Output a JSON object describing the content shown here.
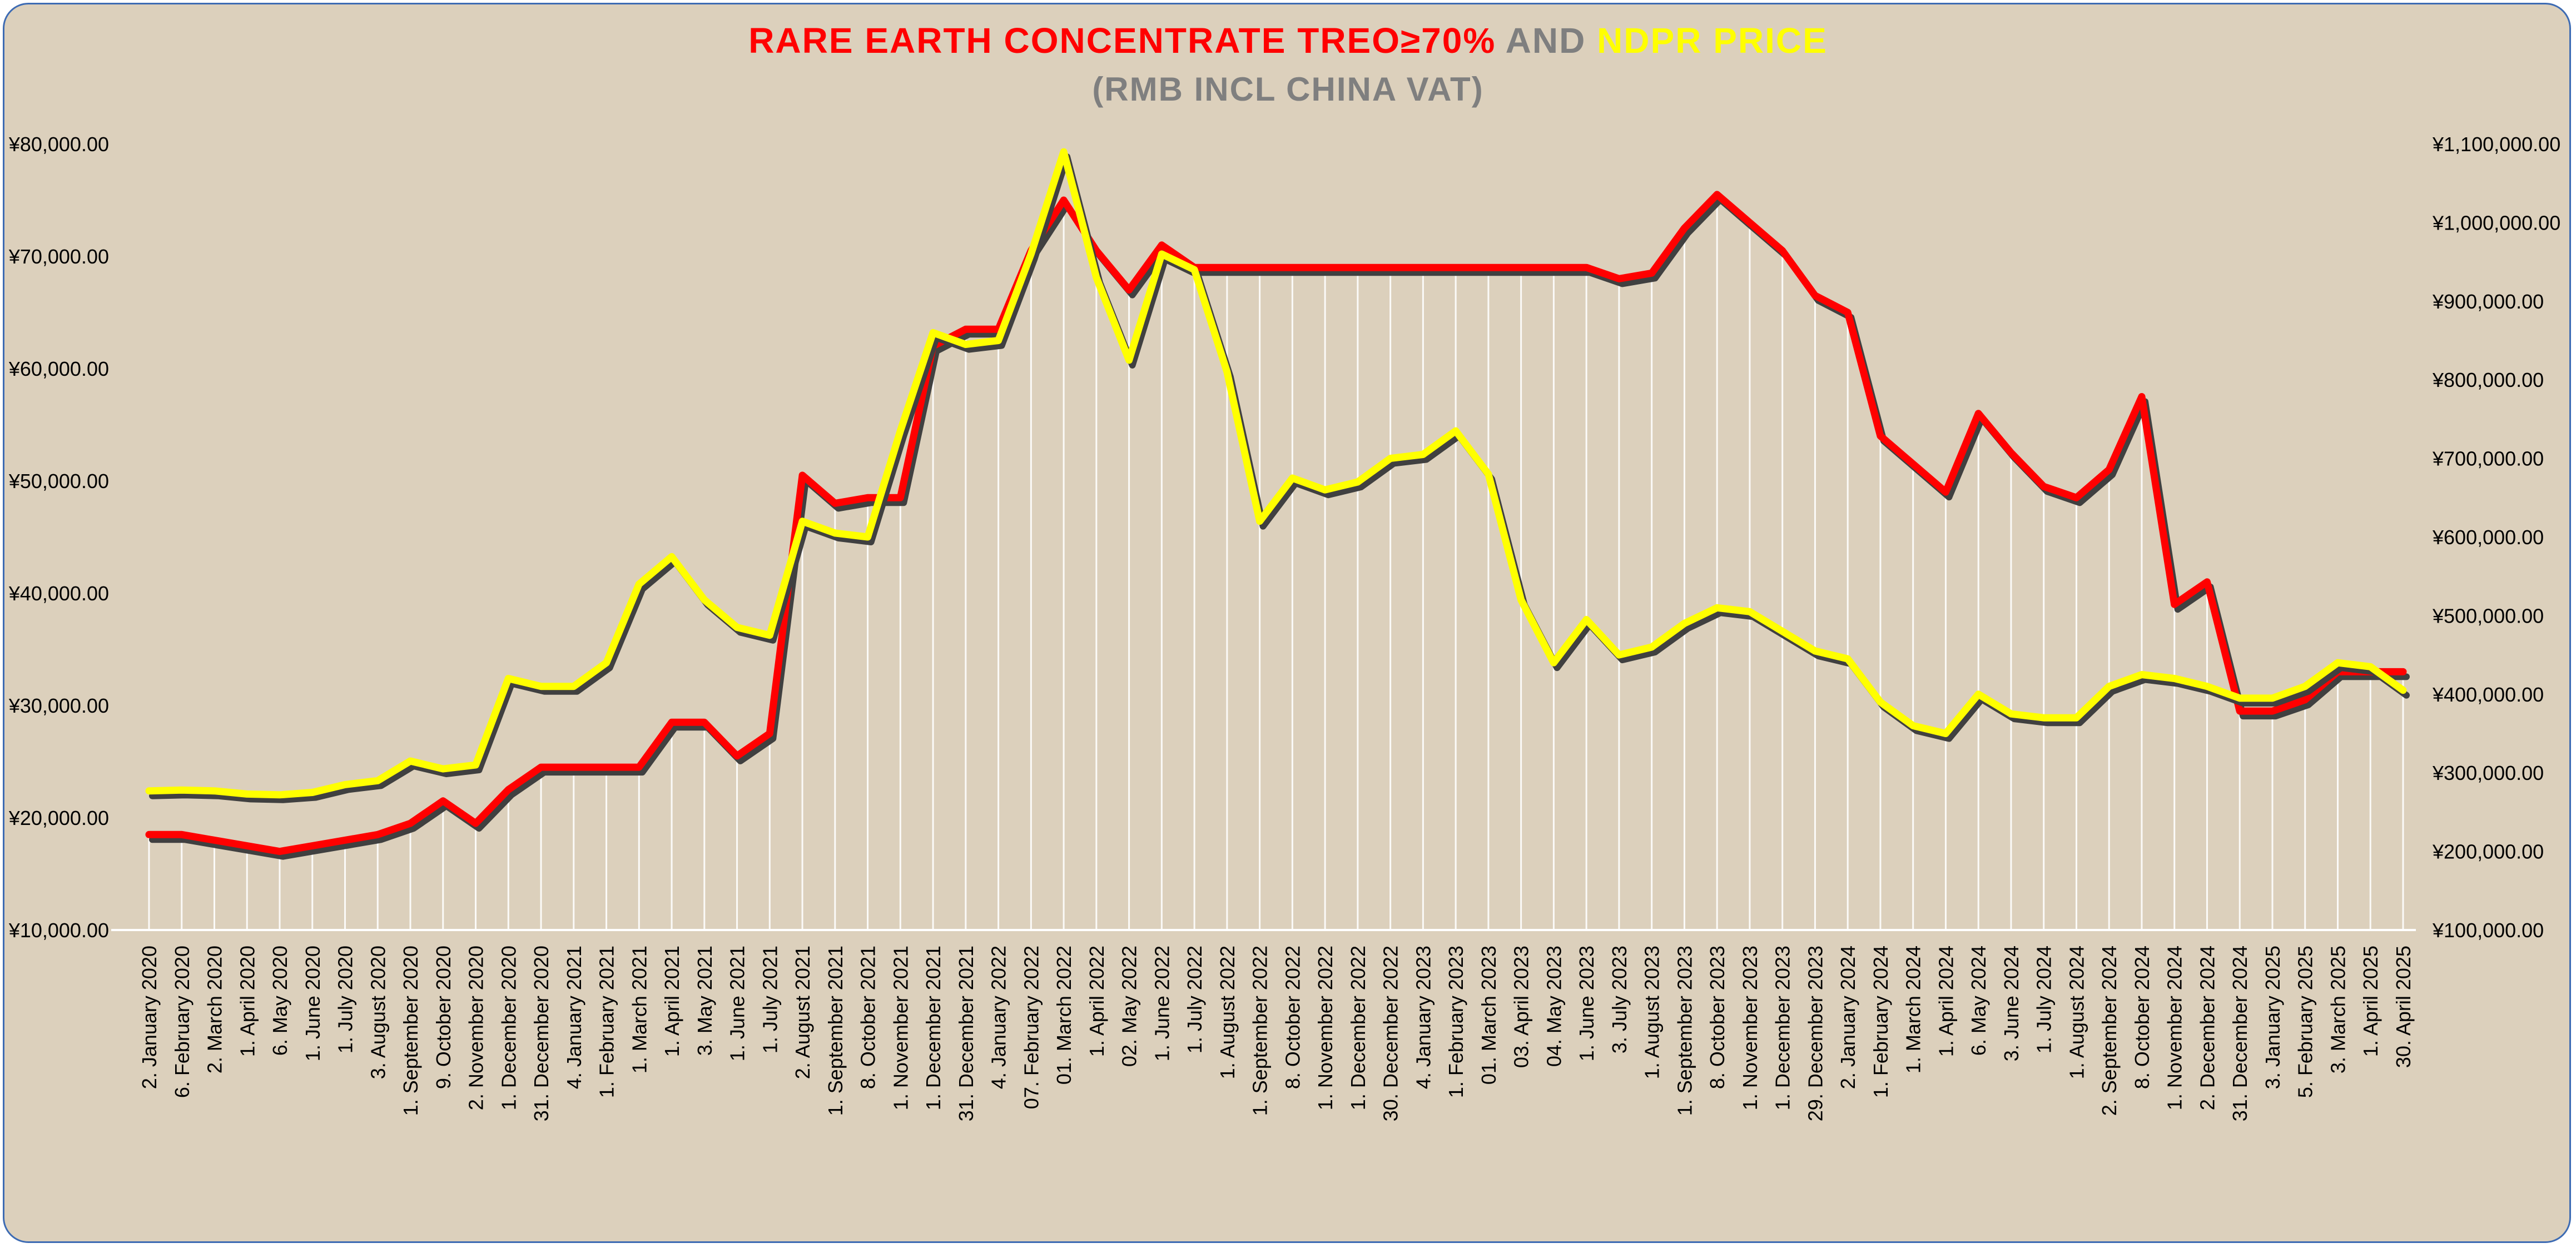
{
  "colors": {
    "background": "#dcd0bc",
    "border": "#3d6bb3",
    "title_red": "#ff0000",
    "title_gray": "#7f7f7f",
    "title_yellow": "#ffff00",
    "series_red": "#ff0000",
    "series_yellow": "#ffff00",
    "shadow": "#404040",
    "drop_lines": "#ffffff"
  },
  "chart_data": {
    "type": "line",
    "title_parts": [
      "RARE EARTH CONCENTRATE TREO≥70%",
      " AND ",
      "NDPR PRICE"
    ],
    "subtitle": "(RMB INCL CHINA VAT)",
    "xlabel": "",
    "y_left": {
      "min": 10000,
      "max": 80000,
      "step": 10000,
      "ticks": [
        "¥10,000.00",
        "¥20,000.00",
        "¥30,000.00",
        "¥40,000.00",
        "¥50,000.00",
        "¥60,000.00",
        "¥70,000.00",
        "¥80,000.00"
      ]
    },
    "y_right": {
      "min": 100000,
      "max": 1100000,
      "step": 100000,
      "ticks": [
        "¥100,000.00",
        "¥200,000.00",
        "¥300,000.00",
        "¥400,000.00",
        "¥500,000.00",
        "¥600,000.00",
        "¥700,000.00",
        "¥800,000.00",
        "¥900,000.00",
        "¥1,000,000.00",
        "¥1,100,000.00"
      ]
    },
    "grid": false,
    "drop_lines": true,
    "legend": "none",
    "categories": [
      "2. January 2020",
      "6. February 2020",
      "2. March 2020",
      "1. April 2020",
      "6. May 2020",
      "1. June 2020",
      "1. July 2020",
      "3. August 2020",
      "1. September 2020",
      "9. October 2020",
      "2. November 2020",
      "1. December 2020",
      "31. December 2020",
      "4. January 2021",
      "1. February 2021",
      "1. March 2021",
      "1. April 2021",
      "3. May 2021",
      "1. June 2021",
      "1. July 2021",
      "2. August 2021",
      "1. September 2021",
      "8. October 2021",
      "1. November 2021",
      "1. December 2021",
      "31. December 2021",
      "4. January 2022",
      "07. February 2022",
      "01. March 2022",
      "1. April 2022",
      "02. May 2022",
      "1. June 2022",
      "1. July 2022",
      "1. August 2022",
      "1. September 2022",
      "8. October 2022",
      "1. November 2022",
      "1. December 2022",
      "30. December 2022",
      "4. January 2023",
      "1. February 2023",
      "01. March 2023",
      "03. April 2023",
      "04. May 2023",
      "1. June 2023",
      "3. July 2023",
      "1. August 2023",
      "1. September 2023",
      "8. October 2023",
      "1. November 2023",
      "1. December 2023",
      "29. December 2023",
      "2. January 2024",
      "1. February 2024",
      "1. March 2024",
      "1. April 2024",
      "6. May 2024",
      "3. June 2024",
      "1. July 2024",
      "1. August 2024",
      "2. September 2024",
      "8. October 2024",
      "1. November 2024",
      "2. December 2024",
      "31. December 2024",
      "3. January 2025",
      "5. February 2025",
      "3. March 2025",
      "1. April 2025",
      "30. April 2025"
    ],
    "series": [
      {
        "axis": "left",
        "color": "#ff0000",
        "values": [
          18500,
          18500,
          18000,
          17500,
          17000,
          17500,
          18000,
          18500,
          19500,
          21500,
          19500,
          22500,
          24500,
          24500,
          24500,
          24500,
          28500,
          28500,
          25500,
          27500,
          50500,
          48000,
          48500,
          48500,
          62000,
          63500,
          63500,
          70500,
          75000,
          70500,
          67000,
          71000,
          69000,
          69000,
          69000,
          69000,
          69000,
          69000,
          69000,
          69000,
          69000,
          69000,
          69000,
          69000,
          69000,
          68000,
          68500,
          72500,
          75500,
          73000,
          70500,
          66500,
          65000,
          54000,
          51500,
          49000,
          56000,
          52500,
          49500,
          48500,
          51000,
          57500,
          39000,
          41000,
          29500,
          29500,
          30500,
          33000,
          33000,
          33000
        ]
      },
      {
        "axis": "right",
        "color": "#ffff00",
        "values": [
          277000,
          278000,
          277000,
          273000,
          272000,
          275000,
          285000,
          290000,
          315000,
          305000,
          310000,
          420000,
          410000,
          410000,
          440000,
          540000,
          575000,
          520000,
          485000,
          475000,
          620000,
          605000,
          600000,
          735000,
          860000,
          845000,
          850000,
          960000,
          1090000,
          930000,
          825000,
          960000,
          940000,
          810000,
          620000,
          675000,
          660000,
          670000,
          700000,
          705000,
          735000,
          680000,
          520000,
          440000,
          495000,
          450000,
          460000,
          490000,
          510000,
          505000,
          480000,
          455000,
          445000,
          390000,
          360000,
          350000,
          400000,
          375000,
          370000,
          370000,
          410000,
          425000,
          420000,
          410000,
          395000,
          395000,
          410000,
          440000,
          435000,
          405000
        ]
      }
    ]
  }
}
